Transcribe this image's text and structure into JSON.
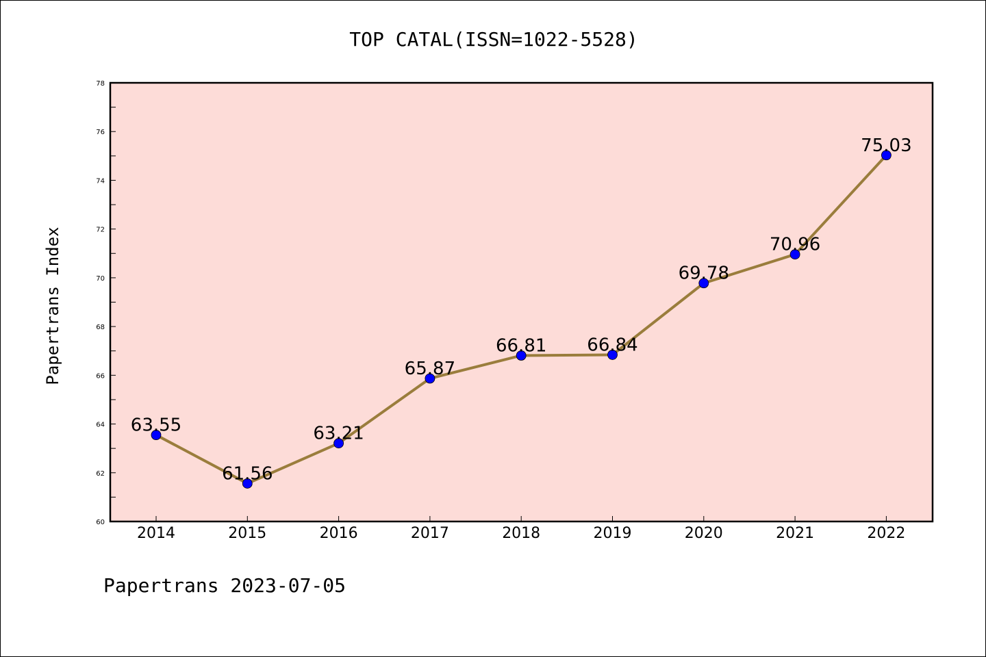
{
  "chart_data": {
    "type": "line",
    "title": "TOP CATAL(ISSN=1022-5528)",
    "xlabel": "",
    "ylabel": "Papertrans Index",
    "footer": "Papertrans 2023-07-05",
    "categories": [
      "2014",
      "2015",
      "2016",
      "2017",
      "2018",
      "2019",
      "2020",
      "2021",
      "2022"
    ],
    "values": [
      63.55,
      61.56,
      63.21,
      65.87,
      66.81,
      66.84,
      69.78,
      70.96,
      75.03
    ],
    "data_labels": [
      "63.55",
      "61.56",
      "63.21",
      "65.87",
      "66.81",
      "66.84",
      "69.78",
      "70.96",
      "75.03"
    ],
    "ylim": [
      60,
      78
    ],
    "yticks": [
      "60",
      "62",
      "64",
      "66",
      "68",
      "70",
      "72",
      "74",
      "76",
      "78"
    ],
    "grid": false,
    "legend": "none",
    "colors": {
      "plot_background": "#fddcd8",
      "line": "#9a7d3c",
      "marker": "#0000ff",
      "axes": "#000000"
    }
  }
}
